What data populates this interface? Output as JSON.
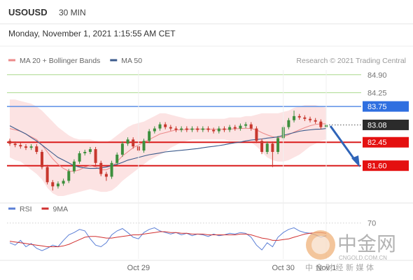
{
  "header": {
    "symbol": "USOUSD",
    "interval": "30 MIN",
    "timestamp": "Monday, November 1, 2021 1:15:55 AM CET"
  },
  "chart_data": [
    {
      "type": "candlestick",
      "source": "Research © 2021 Trading Central",
      "categories": [
        null,
        null,
        null,
        null,
        null,
        null,
        null,
        null,
        null,
        null,
        null,
        null,
        null,
        null,
        null,
        null,
        null,
        null,
        null,
        null,
        null,
        null,
        null,
        null,
        "Oct 29",
        null,
        null,
        null,
        null,
        null,
        null,
        null,
        null,
        null,
        null,
        null,
        null,
        null,
        null,
        null,
        null,
        null,
        null,
        null,
        null,
        null,
        null,
        null,
        null,
        null,
        null,
        "Oct 30",
        null,
        null,
        null,
        null,
        null,
        null,
        null,
        "Nov 1"
      ],
      "open": [
        82.5,
        82.4,
        82.35,
        82.3,
        82.25,
        82.3,
        82.1,
        81.55,
        81.0,
        80.85,
        80.95,
        81.05,
        81.4,
        81.75,
        82.05,
        82.1,
        82.2,
        81.7,
        81.3,
        81.2,
        81.7,
        82.0,
        82.4,
        82.55,
        82.3,
        82.15,
        82.5,
        82.85,
        82.95,
        83.1,
        83.0,
        82.95,
        82.9,
        82.95,
        82.9,
        82.95,
        82.9,
        82.95,
        82.9,
        82.85,
        82.95,
        82.9,
        83.0,
        82.95,
        83.05,
        83.1,
        82.95,
        82.5,
        82.1,
        82.4,
        82.1,
        82.6,
        83.0,
        83.25,
        83.4,
        83.35,
        83.3,
        83.25,
        83.2,
        83.0
      ],
      "high": [
        82.58,
        82.48,
        82.43,
        82.38,
        82.38,
        82.38,
        82.18,
        81.63,
        81.08,
        81.03,
        81.13,
        81.48,
        81.83,
        82.13,
        82.18,
        82.28,
        82.28,
        81.78,
        81.38,
        81.78,
        82.08,
        82.48,
        82.63,
        82.63,
        82.38,
        82.58,
        82.93,
        83.03,
        83.18,
        83.18,
        83.08,
        83.03,
        83.03,
        83.03,
        83.03,
        83.03,
        83.03,
        83.03,
        82.98,
        83.03,
        83.03,
        83.08,
        83.08,
        83.13,
        83.18,
        83.18,
        83.03,
        82.58,
        82.48,
        82.48,
        82.68,
        83.08,
        83.33,
        83.6,
        83.48,
        83.43,
        83.38,
        83.33,
        83.28,
        83.16
      ],
      "low": [
        82.32,
        82.27,
        82.22,
        82.17,
        82.17,
        82.02,
        81.47,
        80.92,
        80.7,
        80.77,
        80.87,
        80.97,
        81.32,
        81.67,
        81.97,
        82.02,
        81.62,
        81.22,
        81.05,
        81.12,
        81.62,
        81.92,
        82.32,
        82.22,
        82.07,
        82.07,
        82.42,
        82.77,
        82.87,
        82.92,
        82.87,
        82.82,
        82.82,
        82.82,
        82.82,
        82.82,
        82.82,
        82.82,
        82.77,
        82.77,
        82.82,
        82.82,
        82.87,
        82.87,
        82.97,
        82.87,
        82.42,
        82.02,
        82.02,
        81.55,
        82.02,
        82.52,
        82.92,
        83.17,
        83.27,
        83.22,
        83.17,
        83.12,
        82.92,
        82.92
      ],
      "close": [
        82.4,
        82.35,
        82.3,
        82.25,
        82.3,
        82.1,
        81.55,
        81.0,
        80.85,
        80.95,
        81.05,
        81.4,
        81.75,
        82.05,
        82.1,
        82.2,
        81.7,
        81.3,
        81.2,
        81.7,
        82.0,
        82.4,
        82.55,
        82.3,
        82.15,
        82.5,
        82.85,
        82.95,
        83.1,
        83.0,
        82.95,
        82.9,
        82.95,
        82.9,
        82.95,
        82.9,
        82.95,
        82.9,
        82.85,
        82.95,
        82.9,
        83.0,
        82.95,
        83.05,
        83.1,
        82.95,
        82.5,
        82.1,
        82.4,
        82.1,
        82.6,
        83.0,
        83.25,
        83.4,
        83.35,
        83.3,
        83.25,
        83.2,
        83.0,
        83.08
      ],
      "up_color": "#3d8f3d",
      "down_color": "#c8372d",
      "series": [
        {
          "name": "MA 20 + Bollinger Bands",
          "color": "#ec8a8a",
          "band_color": "#fbdede",
          "values": [
            82.95,
            82.9,
            82.85,
            82.75,
            82.65,
            82.55,
            82.35,
            82.1,
            81.85,
            81.65,
            81.5,
            81.4,
            81.4,
            81.45,
            81.55,
            81.6,
            81.55,
            81.45,
            81.45,
            81.55,
            81.75,
            81.95,
            82.1,
            82.25,
            82.35,
            82.45,
            82.55,
            82.65,
            82.75,
            82.8,
            82.85,
            82.9,
            82.9,
            82.92,
            82.93,
            82.93,
            82.93,
            82.93,
            82.92,
            82.92,
            82.92,
            82.93,
            82.94,
            82.95,
            82.96,
            82.95,
            82.9,
            82.8,
            82.72,
            82.65,
            82.62,
            82.65,
            82.72,
            82.82,
            82.9,
            82.98,
            83.05,
            83.1,
            83.12,
            83.12
          ],
          "upper": [
            84.0,
            84.0,
            83.95,
            83.9,
            83.85,
            83.75,
            83.6,
            83.4,
            83.2,
            83.0,
            82.85,
            82.7,
            82.6,
            82.55,
            82.55,
            82.55,
            82.5,
            82.45,
            82.45,
            82.55,
            82.7,
            82.85,
            83.0,
            83.1,
            83.15,
            83.2,
            83.3,
            83.4,
            83.5,
            83.5,
            83.45,
            83.4,
            83.35,
            83.3,
            83.3,
            83.3,
            83.3,
            83.3,
            83.3,
            83.3,
            83.3,
            83.35,
            83.35,
            83.35,
            83.4,
            83.4,
            83.45,
            83.5,
            83.5,
            83.5,
            83.5,
            83.55,
            83.6,
            83.7,
            83.75,
            83.8,
            83.8,
            83.8,
            83.75,
            83.7
          ],
          "lower": [
            81.9,
            81.8,
            81.75,
            81.6,
            81.45,
            81.3,
            81.1,
            80.8,
            80.6,
            80.5,
            80.5,
            80.55,
            80.6,
            80.65,
            80.7,
            80.75,
            80.7,
            80.65,
            80.65,
            80.7,
            80.85,
            81.05,
            81.2,
            81.35,
            81.5,
            81.65,
            81.8,
            81.9,
            82.0,
            82.1,
            82.25,
            82.35,
            82.45,
            82.5,
            82.55,
            82.55,
            82.55,
            82.55,
            82.55,
            82.55,
            82.55,
            82.5,
            82.5,
            82.5,
            82.5,
            82.45,
            82.3,
            82.1,
            81.9,
            81.8,
            81.75,
            81.75,
            81.8,
            81.9,
            82.0,
            82.15,
            82.3,
            82.4,
            82.5,
            82.55
          ]
        },
        {
          "name": "MA 50",
          "color": "#3c5b8c",
          "values": [
            83.05,
            82.95,
            82.85,
            82.75,
            82.62,
            82.5,
            82.35,
            82.2,
            82.05,
            81.9,
            81.8,
            81.7,
            81.6,
            81.55,
            81.52,
            81.5,
            81.5,
            81.52,
            81.55,
            81.6,
            81.65,
            81.72,
            81.8,
            81.85,
            81.9,
            81.95,
            82.0,
            82.03,
            82.06,
            82.1,
            82.12,
            82.14,
            82.16,
            82.18,
            82.2,
            82.22,
            82.25,
            82.28,
            82.3,
            82.33,
            82.36,
            82.4,
            82.43,
            82.46,
            82.5,
            82.53,
            82.55,
            82.57,
            82.6,
            82.62,
            82.65,
            82.7,
            82.75,
            82.8,
            82.85,
            82.88,
            82.9,
            82.92,
            82.93,
            82.95
          ]
        }
      ],
      "ylim": [
        80.5,
        85.2
      ],
      "levels": [
        {
          "value": 84.9,
          "label": "84.90",
          "color": "#a9d98c",
          "label_bg": null,
          "width": 1,
          "dashed": false
        },
        {
          "value": 84.25,
          "label": "84.25",
          "color": "#a9d98c",
          "label_bg": null,
          "width": 1,
          "dashed": false
        },
        {
          "value": 83.75,
          "label": "83.75",
          "color": "#5b8fe6",
          "label_bg": "#2f6fe0",
          "width": 1.5,
          "dashed": false
        },
        {
          "value": 83.08,
          "label": "83.08",
          "color": "#555555",
          "label_bg": "#2b2b2b",
          "width": 1,
          "dashed": true
        },
        {
          "value": 82.45,
          "label": "82.45",
          "color": "#d91b1b",
          "label_bg": "#e41010",
          "width": 2,
          "dashed": false
        },
        {
          "value": 81.6,
          "label": "81.60",
          "color": "#d91b1b",
          "label_bg": "#e41010",
          "width": 2,
          "dashed": false
        }
      ]
    },
    {
      "type": "line",
      "series": [
        {
          "name": "RSI",
          "color": "#5b7fd6",
          "values": [
            45,
            42,
            48,
            40,
            44,
            38,
            35,
            38,
            42,
            40,
            48,
            55,
            58,
            62,
            60,
            50,
            42,
            40,
            45,
            55,
            60,
            63,
            58,
            52,
            50,
            58,
            62,
            64,
            60,
            58,
            56,
            58,
            55,
            57,
            54,
            56,
            55,
            53,
            56,
            54,
            55,
            57,
            56,
            58,
            57,
            52,
            42,
            36,
            45,
            40,
            52,
            58,
            62,
            64,
            60,
            58,
            57,
            55,
            52,
            54
          ]
        },
        {
          "name": "9MA",
          "color": "#d13030",
          "values": [
            47,
            46,
            45,
            44,
            43,
            42,
            41,
            40,
            40,
            40,
            41,
            43,
            46,
            49,
            52,
            53,
            53,
            52,
            51,
            51,
            52,
            53,
            54,
            55,
            55,
            56,
            57,
            58,
            59,
            59,
            58,
            58,
            57,
            57,
            56,
            56,
            56,
            55,
            55,
            55,
            55,
            55,
            55,
            56,
            56,
            55,
            53,
            51,
            50,
            48,
            48,
            49,
            50,
            52,
            54,
            56,
            57,
            58,
            58,
            57
          ]
        }
      ],
      "ylim": [
        20,
        75
      ],
      "yticks": [
        70
      ]
    }
  ],
  "watermark": {
    "name": "中金网",
    "domain": "CNGOLD.COM.CN",
    "slogan": "中 金 财 经 新 媒 体"
  }
}
